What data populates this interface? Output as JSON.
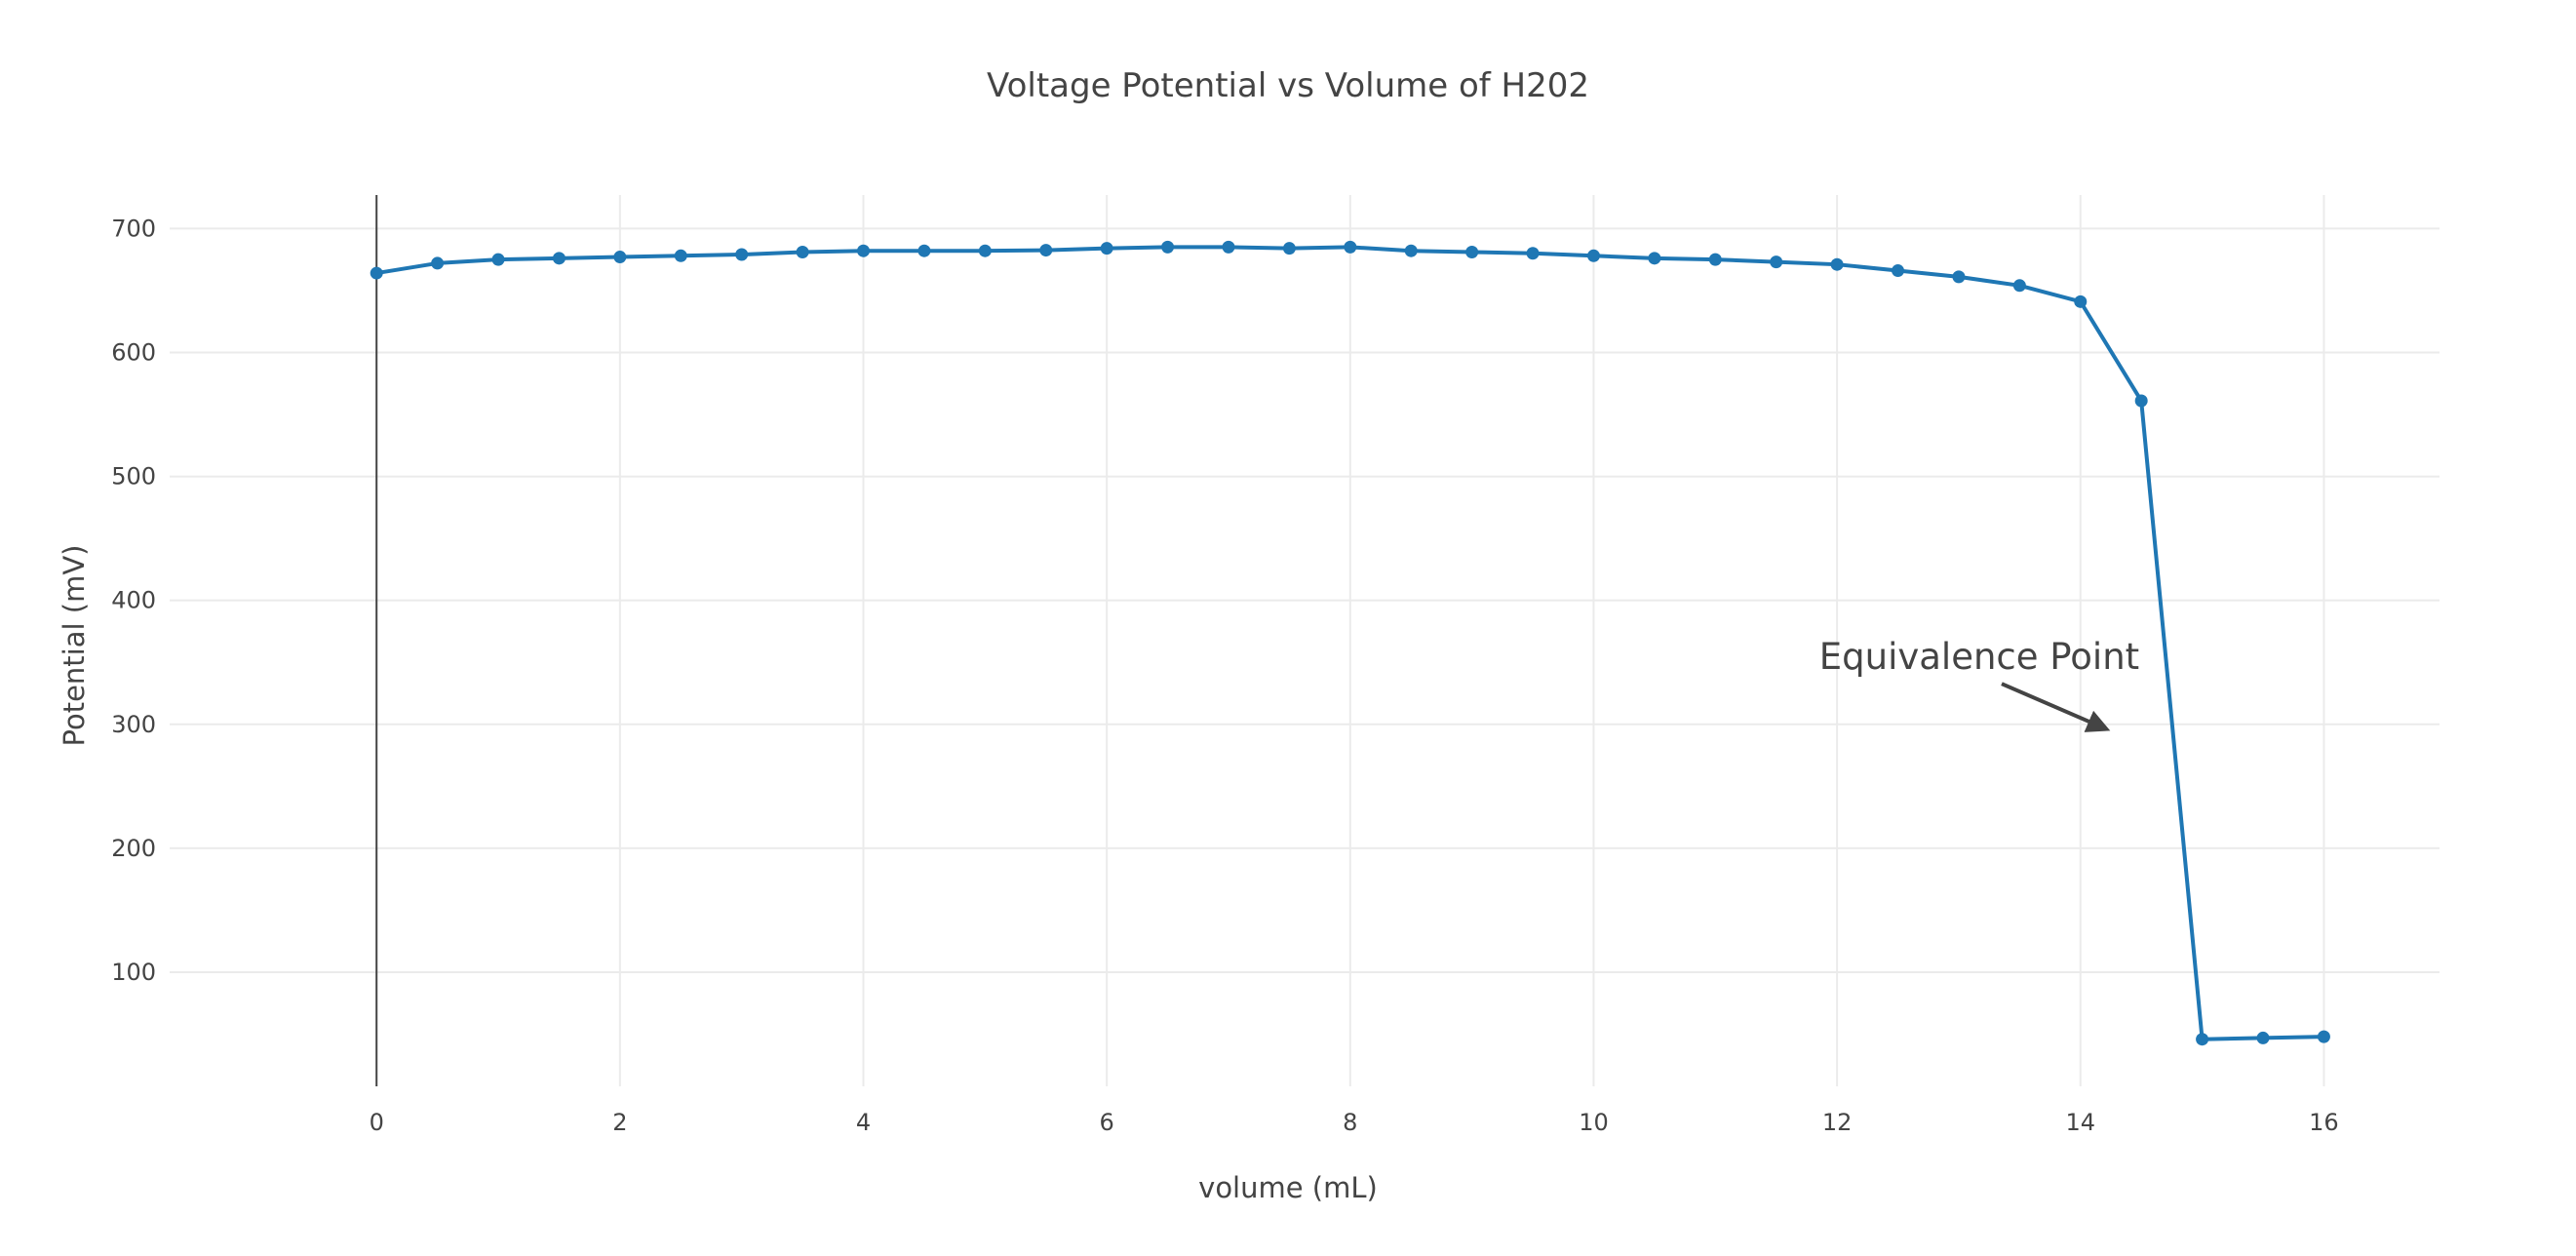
{
  "chart_data": {
    "type": "line",
    "title": "Voltage Potential vs Volume of H202",
    "xlabel": "volume (mL)",
    "ylabel": "Potential (mV)",
    "xlim": [
      -1.7,
      16.95
    ],
    "ylim": [
      8,
      727
    ],
    "x_ticks": [
      0,
      2,
      4,
      6,
      8,
      10,
      12,
      14,
      16
    ],
    "y_ticks": [
      100,
      200,
      300,
      400,
      500,
      600,
      700
    ],
    "grid": true,
    "legend": "none",
    "series": [
      {
        "color": "#1f77b4",
        "mode": "lines+markers",
        "x": [
          0,
          0.5,
          1,
          1.5,
          2,
          2.5,
          3,
          3.5,
          4,
          4.5,
          5,
          5.5,
          6,
          6.5,
          7,
          7.5,
          8,
          8.5,
          9,
          9.5,
          10,
          10.5,
          11,
          11.5,
          12,
          12.5,
          13,
          13.5,
          14,
          14.5,
          15,
          15.5,
          16
        ],
        "y": [
          664,
          672,
          675,
          676,
          677,
          678,
          679,
          681,
          682,
          682,
          682,
          682.5,
          684,
          685,
          685,
          684,
          685,
          682,
          681,
          680,
          678,
          676,
          675,
          673,
          671,
          666,
          661,
          654,
          641,
          561,
          46,
          47,
          48
        ]
      }
    ],
    "annotations": [
      {
        "text": "Equivalence Point",
        "x": 14.25,
        "y": 295,
        "arrow": true
      }
    ]
  }
}
